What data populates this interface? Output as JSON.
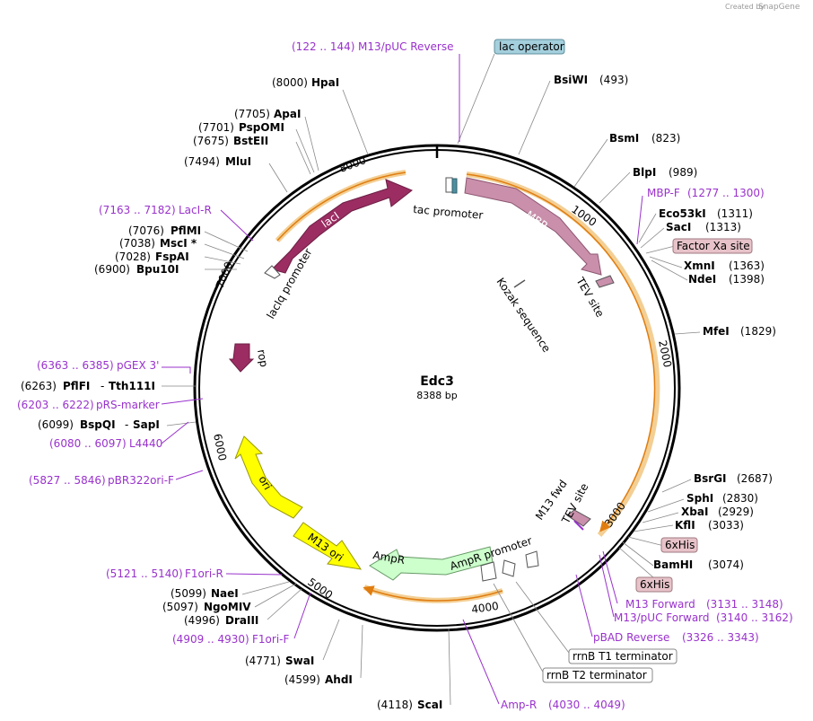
{
  "credit": {
    "created_by": "Created by",
    "brand": "SnapGene"
  },
  "plasmid": {
    "name": "Edc3",
    "length": "8388 bp"
  },
  "ticks": {
    "t1000": "1000",
    "t2000": "2000",
    "t3000": "3000",
    "t4000": "4000",
    "t5000": "5000",
    "t6000": "6000",
    "t7000": "7000",
    "t8000": "8000"
  },
  "features": {
    "lacI": "lacI",
    "MBP": "MBP",
    "rop": "rop",
    "ori": "ori",
    "m13ori": "M13 ori",
    "AmpR": "AmpR",
    "tac_promoter": "tac promoter",
    "laciq_promoter": "lacIq promoter",
    "kozak": "Kozak sequence",
    "tev1": "TEV site",
    "tev2": "TEV site",
    "m13fwd": "M13 fwd",
    "ampr_promoter": "AmpR promoter"
  },
  "boxes": {
    "lac_operator": "lac operator",
    "factor_xa": "Factor Xa site",
    "his1": "6xHis",
    "his2": "6xHis",
    "rrnb_t1": "rrnB T1 terminator",
    "rrnb_t2": "rrnB T2 terminator"
  },
  "enzymes": {
    "HpaI": {
      "pos": "(8000)",
      "name": "HpaI"
    },
    "ApaI": {
      "pos": "(7705)",
      "name": "ApaI"
    },
    "PspOMI": {
      "pos": "(7701)",
      "name": "PspOMI"
    },
    "BstEII": {
      "pos": "(7675)",
      "name": "BstEII"
    },
    "MluI": {
      "pos": "(7494)",
      "name": "MluI"
    },
    "PflMI": {
      "pos": "(7076)",
      "name": "PflMI"
    },
    "MscI": {
      "pos": "(7038)",
      "name": "MscI *"
    },
    "FspAI": {
      "pos": "(7028)",
      "name": "FspAI"
    },
    "Bpu10I": {
      "pos": "(6900)",
      "name": "Bpu10I"
    },
    "PflFI": {
      "pos": "(6263)",
      "name": "PflFI",
      "name2": "Tth111I"
    },
    "BspQI": {
      "pos": "(6099)",
      "name": "BspQI",
      "name2": "SapI"
    },
    "NaeI": {
      "pos": "(5099)",
      "name": "NaeI"
    },
    "NgoMIV": {
      "pos": "(5097)",
      "name": "NgoMIV"
    },
    "DraIII": {
      "pos": "(4996)",
      "name": "DraIII"
    },
    "SwaI": {
      "pos": "(4771)",
      "name": "SwaI"
    },
    "AhdI": {
      "pos": "(4599)",
      "name": "AhdI"
    },
    "ScaI": {
      "pos": "(4118)",
      "name": "ScaI"
    },
    "BsiWI": {
      "pos": "(493)",
      "name": "BsiWI"
    },
    "BsmI": {
      "pos": "(823)",
      "name": "BsmI"
    },
    "BlpI": {
      "pos": "(989)",
      "name": "BlpI"
    },
    "Eco53kI": {
      "pos": "(1311)",
      "name": "Eco53kI"
    },
    "SacI": {
      "pos": "(1313)",
      "name": "SacI"
    },
    "XmnI": {
      "pos": "(1363)",
      "name": "XmnI"
    },
    "NdeI": {
      "pos": "(1398)",
      "name": "NdeI"
    },
    "MfeI": {
      "pos": "(1829)",
      "name": "MfeI"
    },
    "BsrGI": {
      "pos": "(2687)",
      "name": "BsrGI"
    },
    "SphI": {
      "pos": "(2830)",
      "name": "SphI"
    },
    "XbaI": {
      "pos": "(2929)",
      "name": "XbaI"
    },
    "KflI": {
      "pos": "(3033)",
      "name": "KflI"
    },
    "BamHI": {
      "pos": "(3074)",
      "name": "BamHI"
    }
  },
  "primers": {
    "m13puc_rev": {
      "range": "(122 .. 144)",
      "name": "M13/pUC Reverse"
    },
    "laci_r": {
      "range": "(7163 .. 7182)",
      "name": "LacI-R"
    },
    "pgex3": {
      "range": "(6363 .. 6385)",
      "name": "pGEX 3'"
    },
    "prs_marker": {
      "range": "(6203 .. 6222)",
      "name": "pRS-marker"
    },
    "l4440": {
      "range": "(6080 .. 6097)",
      "name": "L4440"
    },
    "pbr322ori": {
      "range": "(5827 .. 5846)",
      "name": "pBR322ori-F"
    },
    "f1ori_r": {
      "range": "(5121 .. 5140)",
      "name": "F1ori-R"
    },
    "f1ori_f": {
      "range": "(4909 .. 4930)",
      "name": "F1ori-F"
    },
    "mbp_f": {
      "range": "(1277 .. 1300)",
      "name": "MBP-F"
    },
    "m13_forward": {
      "range": "(3131 .. 3148)",
      "name": "M13 Forward"
    },
    "m13puc_fwd": {
      "range": "(3140 .. 3162)",
      "name": "M13/pUC Forward"
    },
    "pbad_rev": {
      "range": "(3326 .. 3343)",
      "name": "pBAD Reverse"
    },
    "amp_r": {
      "range": "(4030 .. 4049)",
      "name": "Amp-R"
    }
  },
  "colors": {
    "lacI": "#9b2d62",
    "MBP": "#c98fab",
    "rop": "#9b2d62",
    "ori": "#ffff00",
    "AmpR": "#ccffcc",
    "orf": "#e8a33c",
    "primer": "#9932cc",
    "lac_operator_box": "#a4cfdc",
    "pink_box": "#e7c3c9"
  }
}
